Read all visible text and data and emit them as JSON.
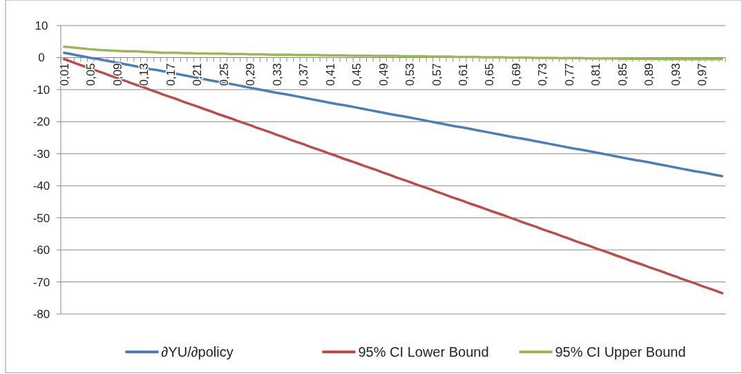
{
  "chart_data": {
    "type": "line",
    "categories": [
      "0,01",
      null,
      null,
      null,
      "0,05",
      null,
      null,
      null,
      "0,09",
      null,
      null,
      null,
      "0,13",
      null,
      null,
      null,
      "0,17",
      null,
      null,
      null,
      "0,21",
      null,
      null,
      null,
      "0,25",
      null,
      null,
      null,
      "0,29",
      null,
      null,
      null,
      "0,33",
      null,
      null,
      null,
      "0,37",
      null,
      null,
      null,
      "0,41",
      null,
      null,
      null,
      "0,45",
      null,
      null,
      null,
      "0,49",
      null,
      null,
      null,
      "0,53",
      null,
      null,
      null,
      "0,57",
      null,
      null,
      null,
      "0,61",
      null,
      null,
      null,
      "0,65",
      null,
      null,
      null,
      "0,69",
      null,
      null,
      null,
      "0,73",
      null,
      null,
      null,
      "0,77",
      null,
      null,
      null,
      "0,81",
      null,
      null,
      null,
      "0,85",
      null,
      null,
      null,
      "0,89",
      null,
      null,
      null,
      "0,93",
      null,
      null,
      null,
      "0,97",
      null,
      null,
      null
    ],
    "series": [
      {
        "name": "∂YU/∂policy",
        "color": "#4a7ebb",
        "values": [
          1.5,
          1.1,
          0.7,
          0.3,
          -0.1,
          -0.4,
          -0.8,
          -1.2,
          -1.6,
          -2.0,
          -2.4,
          -2.8,
          -3.2,
          -3.6,
          -3.9,
          -4.3,
          -4.7,
          -5.1,
          -5.5,
          -5.9,
          -6.3,
          -6.7,
          -7.1,
          -7.5,
          -7.8,
          -8.2,
          -8.6,
          -9.0,
          -9.4,
          -9.8,
          -10.2,
          -10.6,
          -11.0,
          -11.3,
          -11.7,
          -12.1,
          -12.5,
          -12.9,
          -13.3,
          -13.7,
          -14.1,
          -14.5,
          -14.8,
          -15.2,
          -15.6,
          -16.0,
          -16.4,
          -16.8,
          -17.2,
          -17.6,
          -18.0,
          -18.3,
          -18.7,
          -19.1,
          -19.5,
          -19.9,
          -20.3,
          -20.7,
          -21.1,
          -21.5,
          -21.8,
          -22.2,
          -22.6,
          -23.0,
          -23.4,
          -23.8,
          -24.2,
          -24.6,
          -25.0,
          -25.3,
          -25.7,
          -26.1,
          -26.5,
          -26.9,
          -27.3,
          -27.7,
          -28.1,
          -28.5,
          -28.8,
          -29.2,
          -29.6,
          -30.0,
          -30.4,
          -30.8,
          -31.2,
          -31.6,
          -32.0,
          -32.3,
          -32.7,
          -33.1,
          -33.5,
          -33.9,
          -34.3,
          -34.7,
          -35.1,
          -35.5,
          -35.8,
          -36.2,
          -36.6,
          -37.0
        ]
      },
      {
        "name": "95% CI Lower Bound",
        "color": "#be4b48",
        "values": [
          -0.5,
          -1.2,
          -2.0,
          -2.7,
          -3.4,
          -4.2,
          -4.9,
          -5.7,
          -6.4,
          -7.1,
          -7.9,
          -8.6,
          -9.3,
          -10.1,
          -10.8,
          -11.6,
          -12.3,
          -13.0,
          -13.8,
          -14.5,
          -15.2,
          -16.0,
          -16.7,
          -17.5,
          -18.2,
          -18.9,
          -19.7,
          -20.4,
          -21.1,
          -21.9,
          -22.6,
          -23.3,
          -24.1,
          -24.8,
          -25.6,
          -26.3,
          -27.0,
          -27.8,
          -28.5,
          -29.2,
          -30.0,
          -30.7,
          -31.5,
          -32.2,
          -32.9,
          -33.7,
          -34.4,
          -35.1,
          -35.9,
          -36.6,
          -37.4,
          -38.1,
          -38.8,
          -39.6,
          -40.3,
          -41.0,
          -41.8,
          -42.5,
          -43.3,
          -44.0,
          -44.7,
          -45.5,
          -46.2,
          -46.9,
          -47.7,
          -48.4,
          -49.1,
          -49.9,
          -50.6,
          -51.4,
          -52.1,
          -52.8,
          -53.6,
          -54.3,
          -55.0,
          -55.8,
          -56.5,
          -57.3,
          -58.0,
          -58.7,
          -59.5,
          -60.2,
          -60.9,
          -61.7,
          -62.4,
          -63.2,
          -63.9,
          -64.6,
          -65.4,
          -66.1,
          -66.8,
          -67.6,
          -68.3,
          -69.1,
          -69.8,
          -70.5,
          -71.3,
          -72.0,
          -72.7,
          -73.5
        ]
      },
      {
        "name": "95% CI Upper Bound",
        "color": "#98b954",
        "values": [
          3.4,
          3.2,
          3.0,
          2.8,
          2.6,
          2.4,
          2.3,
          2.2,
          2.1,
          2.0,
          2.0,
          1.9,
          1.8,
          1.7,
          1.6,
          1.5,
          1.5,
          1.5,
          1.4,
          1.4,
          1.3,
          1.3,
          1.2,
          1.2,
          1.2,
          1.1,
          1.1,
          1.1,
          1.0,
          1.0,
          1.0,
          0.9,
          0.9,
          0.9,
          0.9,
          0.8,
          0.8,
          0.8,
          0.8,
          0.7,
          0.7,
          0.7,
          0.7,
          0.6,
          0.6,
          0.6,
          0.6,
          0.5,
          0.5,
          0.5,
          0.5,
          0.4,
          0.4,
          0.4,
          0.4,
          0.3,
          0.3,
          0.3,
          0.3,
          0.2,
          0.2,
          0.2,
          0.2,
          0.1,
          0.1,
          0.1,
          0.1,
          0.0,
          0.0,
          0.0,
          0.0,
          -0.1,
          -0.1,
          -0.1,
          -0.1,
          -0.2,
          -0.2,
          -0.2,
          -0.2,
          -0.3,
          -0.3,
          -0.3,
          -0.3,
          -0.3,
          -0.4,
          -0.4,
          -0.4,
          -0.4,
          -0.4,
          -0.4,
          -0.5,
          -0.5,
          -0.5,
          -0.5,
          -0.5,
          -0.5,
          -0.5,
          -0.5,
          -0.5,
          -0.5
        ]
      }
    ],
    "ylim": [
      -80,
      10
    ],
    "yticks": [
      -80,
      -70,
      -60,
      -50,
      -40,
      -30,
      -20,
      -10,
      0,
      10
    ],
    "grid": "y",
    "legend": "bottom",
    "marker": "none",
    "line_style": "solid"
  }
}
